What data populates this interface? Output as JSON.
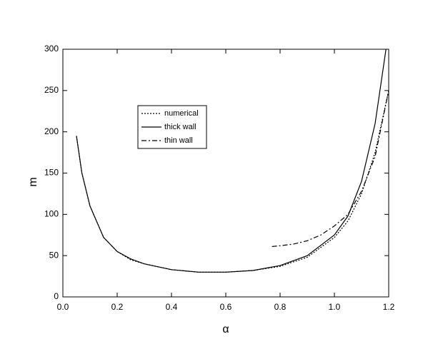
{
  "chart_data": {
    "type": "line",
    "x_label": "α",
    "y_label": "m",
    "xlim": [
      0,
      1.2
    ],
    "ylim": [
      0,
      300
    ],
    "xticks": [
      {
        "value": 0,
        "label": "0.0"
      },
      0.2,
      0.4,
      0.6,
      0.8,
      {
        "value": 1,
        "label": "1.0"
      },
      1.2
    ],
    "yticks": [
      0,
      50,
      100,
      150,
      200,
      250,
      300
    ],
    "grid": false,
    "legend": "upper left",
    "series": [
      {
        "name": "numerical",
        "color": "#000000",
        "style": "dotted",
        "x": [
          0.05,
          0.07,
          0.1,
          0.15,
          0.2,
          0.25,
          0.3,
          0.4,
          0.5,
          0.6,
          0.7,
          0.8,
          0.9,
          1.0,
          1.05,
          1.1,
          1.15,
          1.2
        ],
        "values": [
          195,
          150,
          110,
          72,
          55,
          45,
          40,
          33,
          30,
          30,
          32,
          37,
          48,
          72,
          92,
          125,
          175,
          250
        ]
      },
      {
        "name": "thick wall",
        "color": "#000000",
        "style": "solid",
        "x": [
          0.05,
          0.07,
          0.1,
          0.15,
          0.2,
          0.25,
          0.3,
          0.4,
          0.5,
          0.6,
          0.7,
          0.8,
          0.9,
          1.0,
          1.05,
          1.1,
          1.15,
          1.19
        ],
        "values": [
          195,
          150,
          110,
          72,
          55,
          46,
          40,
          33,
          30,
          30,
          32,
          38,
          50,
          75,
          98,
          140,
          210,
          300
        ]
      },
      {
        "name": "thin wall",
        "color": "#000000",
        "style": "dashdot",
        "x": [
          0.77,
          0.8,
          0.85,
          0.9,
          0.95,
          1.0,
          1.05,
          1.1,
          1.15,
          1.2
        ],
        "values": [
          61,
          62,
          64,
          68,
          75,
          86,
          100,
          128,
          170,
          250
        ]
      }
    ]
  }
}
